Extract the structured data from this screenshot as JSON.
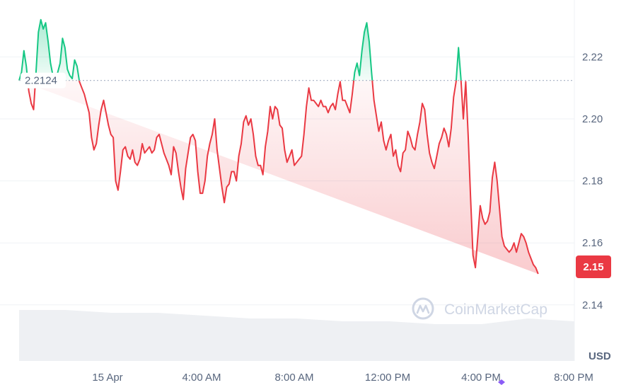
{
  "chart_data": {
    "type": "area",
    "y_unit": "USD",
    "ylim": [
      2.13,
      2.245
    ],
    "y_ticks": [
      2.14,
      2.16,
      2.18,
      2.2,
      2.22
    ],
    "y_tick_labels": [
      "2.14",
      "2.16",
      "2.18",
      "2.20",
      "2.22"
    ],
    "x_tick_labels": [
      "15 Apr",
      "4:00 AM",
      "8:00 AM",
      "12:00 PM",
      "4:00 PM",
      "8:00 PM"
    ],
    "reference_price": 2.2124,
    "reference_label": "2.2124",
    "current_price": 2.15,
    "current_label": "2.15",
    "watermark": "CoinMarketCap",
    "grid": "horizontal",
    "colors": {
      "up": "#16c784",
      "down": "#ea3943",
      "grid": "#eff2f5",
      "text": "#58667e",
      "volume": "#eef0f3"
    },
    "x_hours_from_15_Apr": [
      -3.0,
      -2.9,
      -2.8,
      -2.7,
      -2.6,
      -2.5,
      -2.4,
      -2.3,
      -2.2,
      -2.1,
      -2.0,
      -1.9,
      -1.8,
      -1.7,
      -1.6,
      -1.5,
      -1.4,
      -1.3,
      -1.2,
      -1.1,
      -1.0,
      -0.9,
      -0.8,
      -0.7,
      -0.6,
      -0.5,
      -0.4,
      -0.3,
      -0.2,
      -0.1,
      0.0,
      0.1,
      0.2,
      0.3,
      0.4,
      0.5,
      0.6,
      0.7,
      0.8,
      0.9,
      1.0,
      1.1,
      1.2,
      1.3,
      1.4,
      1.5,
      1.6,
      1.7,
      1.8,
      1.9,
      2.0,
      2.1,
      2.2,
      2.3,
      2.4,
      2.5,
      2.6,
      2.7,
      2.8,
      2.9,
      3.0,
      3.1,
      3.2,
      3.3,
      3.4,
      3.5,
      3.6,
      3.7,
      3.8,
      3.9,
      4.0,
      4.1,
      4.2,
      4.3,
      4.4,
      4.5,
      4.6,
      4.7,
      4.8,
      4.9,
      5.0,
      5.1,
      5.2,
      5.3,
      5.4,
      5.5,
      5.6,
      5.7,
      5.8,
      5.9,
      6.0,
      6.1,
      6.2,
      6.3,
      6.4,
      6.5,
      6.6,
      6.7,
      6.8,
      6.9,
      7.0,
      7.1,
      7.2,
      7.3,
      7.4,
      7.5,
      7.6,
      7.7,
      7.8,
      7.9,
      8.0,
      8.1,
      8.2,
      8.3,
      8.4,
      8.5,
      8.6,
      8.7,
      8.8,
      8.9,
      9.0,
      9.1,
      9.2,
      9.3,
      9.4,
      9.5,
      9.6,
      9.7,
      9.8,
      9.9,
      10.0,
      10.1,
      10.2,
      10.3,
      10.4,
      10.5,
      10.6,
      10.7,
      10.8,
      10.9,
      11.0,
      11.1,
      11.2,
      11.3,
      11.4,
      11.5,
      11.6,
      11.7,
      11.8,
      11.9,
      12.0,
      12.1,
      12.2,
      12.3,
      12.4,
      12.5,
      12.6,
      12.7,
      12.8,
      12.9,
      13.0,
      13.1,
      13.2,
      13.3,
      13.4,
      13.5,
      13.6,
      13.7,
      13.8,
      13.9,
      14.0,
      14.1,
      14.2,
      14.3,
      14.4,
      14.5,
      14.6,
      14.7,
      14.8,
      14.9,
      15.0,
      15.1,
      15.2,
      15.3,
      15.4,
      15.5,
      15.6,
      15.7,
      15.8,
      15.9,
      16.0,
      16.1,
      16.2,
      16.3,
      16.4,
      16.5,
      16.6,
      16.7,
      16.8,
      16.9,
      17.0,
      17.1,
      17.2,
      17.3,
      17.4,
      17.5,
      17.6,
      17.7,
      17.8,
      17.9,
      18.0,
      18.1,
      18.2,
      18.3,
      18.4,
      18.5,
      18.6,
      18.7,
      18.8,
      18.9,
      19.0,
      19.1,
      19.2,
      19.3,
      19.4,
      19.5,
      19.6,
      19.7,
      19.8,
      19.9,
      20.0
    ],
    "series": [
      {
        "values": [
          2.2124,
          2.215,
          2.222,
          2.217,
          2.209,
          2.205,
          2.203,
          2.215,
          2.228,
          2.232,
          2.229,
          2.231,
          2.225,
          2.218,
          2.214,
          2.212,
          2.215,
          2.218,
          2.226,
          2.223,
          2.216,
          2.214,
          2.213,
          2.219,
          2.217,
          2.212,
          2.21,
          2.208,
          2.205,
          2.202,
          2.194,
          2.19,
          2.192,
          2.198,
          2.203,
          2.206,
          2.202,
          2.198,
          2.195,
          2.194,
          2.18,
          2.177,
          2.183,
          2.19,
          2.191,
          2.188,
          2.187,
          2.19,
          2.186,
          2.185,
          2.187,
          2.192,
          2.189,
          2.19,
          2.191,
          2.189,
          2.19,
          2.194,
          2.195,
          2.192,
          2.189,
          2.187,
          2.185,
          2.182,
          2.191,
          2.189,
          2.183,
          2.178,
          2.174,
          2.184,
          2.189,
          2.194,
          2.195,
          2.193,
          2.183,
          2.176,
          2.176,
          2.18,
          2.188,
          2.192,
          2.195,
          2.2,
          2.19,
          2.184,
          2.178,
          2.173,
          2.178,
          2.179,
          2.183,
          2.183,
          2.18,
          2.188,
          2.192,
          2.199,
          2.201,
          2.198,
          2.2,
          2.195,
          2.188,
          2.185,
          2.185,
          2.182,
          2.191,
          2.196,
          2.204,
          2.2,
          2.204,
          2.203,
          2.198,
          2.197,
          2.19,
          2.186,
          2.188,
          2.19,
          2.185,
          2.186,
          2.187,
          2.188,
          2.195,
          2.204,
          2.21,
          2.206,
          2.206,
          2.205,
          2.204,
          2.206,
          2.204,
          2.204,
          2.202,
          2.204,
          2.205,
          2.203,
          2.208,
          2.212,
          2.206,
          2.206,
          2.204,
          2.202,
          2.208,
          2.215,
          2.218,
          2.214,
          2.222,
          2.228,
          2.231,
          2.225,
          2.215,
          2.206,
          2.201,
          2.196,
          2.199,
          2.193,
          2.19,
          2.193,
          2.195,
          2.188,
          2.19,
          2.185,
          2.183,
          2.189,
          2.19,
          2.196,
          2.194,
          2.191,
          2.19,
          2.195,
          2.199,
          2.205,
          2.203,
          2.195,
          2.189,
          2.186,
          2.184,
          2.188,
          2.192,
          2.194,
          2.197,
          2.195,
          2.191,
          2.197,
          2.207,
          2.212,
          2.223,
          2.213,
          2.2,
          2.212,
          2.195,
          2.175,
          2.156,
          2.152,
          2.162,
          2.172,
          2.168,
          2.166,
          2.167,
          2.17,
          2.181,
          2.186,
          2.18,
          2.171,
          2.162,
          2.159,
          2.158,
          2.157,
          2.158,
          2.16,
          2.157,
          2.16,
          2.163,
          2.162,
          2.16,
          2.157,
          2.155,
          2.153,
          2.152,
          2.15
        ],
        "color_up": "#16c784",
        "color_down": "#ea3943"
      }
    ],
    "volume_level": [
      0.18,
      0.18,
      0.17,
      0.17,
      0.16,
      0.15,
      0.15,
      0.14,
      0.14,
      0.13,
      0.13,
      0.15,
      0.14
    ]
  }
}
